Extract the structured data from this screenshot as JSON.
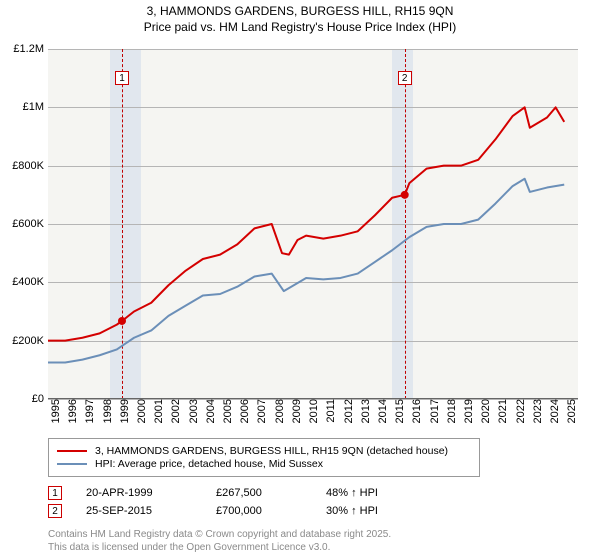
{
  "title_line1": "3, HAMMONDS GARDENS, BURGESS HILL, RH15 9QN",
  "title_line2": "Price paid vs. HM Land Registry's House Price Index (HPI)",
  "chart": {
    "type": "line",
    "x_years": [
      1995,
      1996,
      1997,
      1998,
      1999,
      2000,
      2001,
      2002,
      2003,
      2004,
      2005,
      2006,
      2007,
      2008,
      2009,
      2010,
      2011,
      2012,
      2013,
      2014,
      2015,
      2016,
      2017,
      2018,
      2019,
      2020,
      2021,
      2022,
      2023,
      2024,
      2025
    ],
    "xlim": [
      1995,
      2025.8
    ],
    "ylim": [
      0,
      1200000
    ],
    "ytick_step": 200000,
    "ytick_labels": [
      "£0",
      "£200K",
      "£400K",
      "£600K",
      "£800K",
      "£1M",
      "£1.2M"
    ],
    "background_color": "#f5f5f2",
    "grid_color": "#b5b5b5",
    "shade_bands": [
      {
        "start": 1998.6,
        "end": 2000.4,
        "color": "#dfe6ed"
      },
      {
        "start": 2015.0,
        "end": 2016.2,
        "color": "#dfe6ed"
      }
    ],
    "markers": [
      {
        "label": "1",
        "x": 1999.3,
        "y": 1100000
      },
      {
        "label": "2",
        "x": 2015.73,
        "y": 1100000
      }
    ],
    "event_lines": [
      {
        "x": 1999.3,
        "color": "#c00000"
      },
      {
        "x": 2015.73,
        "color": "#c00000"
      }
    ],
    "sale_points": [
      {
        "x": 1999.3,
        "y": 267500
      },
      {
        "x": 2015.73,
        "y": 700000
      }
    ],
    "series": [
      {
        "name": "price_paid",
        "color": "#d40000",
        "line_width": 2,
        "points": [
          [
            1995,
            200000
          ],
          [
            1996,
            200000
          ],
          [
            1997,
            210000
          ],
          [
            1998,
            225000
          ],
          [
            1999,
            255000
          ],
          [
            1999.3,
            267500
          ],
          [
            2000,
            300000
          ],
          [
            2001,
            330000
          ],
          [
            2002,
            390000
          ],
          [
            2003,
            440000
          ],
          [
            2004,
            480000
          ],
          [
            2005,
            495000
          ],
          [
            2006,
            530000
          ],
          [
            2007,
            585000
          ],
          [
            2008,
            600000
          ],
          [
            2008.6,
            500000
          ],
          [
            2009,
            495000
          ],
          [
            2009.5,
            545000
          ],
          [
            2010,
            560000
          ],
          [
            2011,
            550000
          ],
          [
            2012,
            560000
          ],
          [
            2013,
            575000
          ],
          [
            2014,
            630000
          ],
          [
            2015,
            690000
          ],
          [
            2015.73,
            700000
          ],
          [
            2016,
            740000
          ],
          [
            2017,
            790000
          ],
          [
            2018,
            800000
          ],
          [
            2019,
            800000
          ],
          [
            2020,
            820000
          ],
          [
            2021,
            890000
          ],
          [
            2022,
            970000
          ],
          [
            2022.7,
            1000000
          ],
          [
            2023,
            930000
          ],
          [
            2024,
            965000
          ],
          [
            2024.5,
            1000000
          ],
          [
            2025,
            950000
          ]
        ]
      },
      {
        "name": "hpi",
        "color": "#6b8fb8",
        "line_width": 2,
        "points": [
          [
            1995,
            125000
          ],
          [
            1996,
            125000
          ],
          [
            1997,
            135000
          ],
          [
            1998,
            150000
          ],
          [
            1999,
            170000
          ],
          [
            2000,
            210000
          ],
          [
            2001,
            235000
          ],
          [
            2002,
            285000
          ],
          [
            2003,
            320000
          ],
          [
            2004,
            355000
          ],
          [
            2005,
            360000
          ],
          [
            2006,
            385000
          ],
          [
            2007,
            420000
          ],
          [
            2008,
            430000
          ],
          [
            2008.7,
            370000
          ],
          [
            2009,
            380000
          ],
          [
            2010,
            415000
          ],
          [
            2011,
            410000
          ],
          [
            2012,
            415000
          ],
          [
            2013,
            430000
          ],
          [
            2014,
            470000
          ],
          [
            2015,
            510000
          ],
          [
            2016,
            555000
          ],
          [
            2017,
            590000
          ],
          [
            2018,
            600000
          ],
          [
            2019,
            600000
          ],
          [
            2020,
            615000
          ],
          [
            2021,
            670000
          ],
          [
            2022,
            730000
          ],
          [
            2022.7,
            755000
          ],
          [
            2023,
            710000
          ],
          [
            2024,
            725000
          ],
          [
            2025,
            735000
          ]
        ]
      }
    ]
  },
  "legend": {
    "items": [
      {
        "color": "#d40000",
        "label": "3, HAMMONDS GARDENS, BURGESS HILL, RH15 9QN (detached house)"
      },
      {
        "color": "#6b8fb8",
        "label": "HPI: Average price, detached house, Mid Sussex"
      }
    ]
  },
  "transactions": [
    {
      "marker": "1",
      "date": "20-APR-1999",
      "price": "£267,500",
      "delta": "48% ↑ HPI"
    },
    {
      "marker": "2",
      "date": "25-SEP-2015",
      "price": "£700,000",
      "delta": "30% ↑ HPI"
    }
  ],
  "attribution_line1": "Contains HM Land Registry data © Crown copyright and database right 2025.",
  "attribution_line2": "This data is licensed under the Open Government Licence v3.0."
}
